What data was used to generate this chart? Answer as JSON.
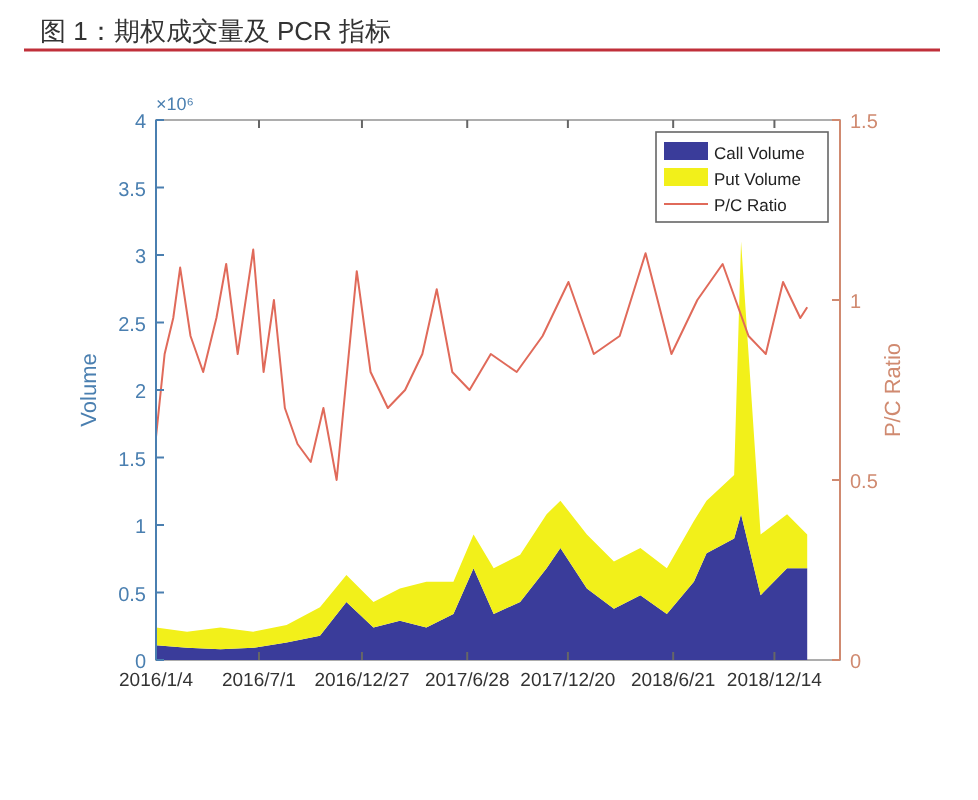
{
  "chart_data": {
    "type": "area",
    "stacked": true,
    "title": "图 1：期权成交量及 PCR 指标",
    "ylabel": "Volume",
    "y2label": "P/C Ratio",
    "annotations": [
      "×10⁶"
    ],
    "legend": "top right",
    "x": [
      "2016-01-04",
      "2016-02-27",
      "2016-04-25",
      "2016-06-21",
      "2016-08-18",
      "2016-10-15",
      "2016-11-30",
      "2017-01-16",
      "2017-03-03",
      "2017-04-18",
      "2017-06-04",
      "2017-07-09",
      "2017-08-13",
      "2017-09-28",
      "2017-11-13",
      "2017-12-07",
      "2018-01-22",
      "2018-03-10",
      "2018-04-25",
      "2018-06-10",
      "2018-07-27",
      "2018-08-18",
      "2018-10-05",
      "2018-10-17",
      "2018-11-20",
      "2019-01-05",
      "2019-02-09"
    ],
    "xlim": [
      "2016-01-04",
      "2019-04-07"
    ],
    "xticks": [
      {
        "value": "2016-01-04",
        "label": "2016/1/4"
      },
      {
        "value": "2016-07-01",
        "label": "2016/7/1"
      },
      {
        "value": "2016-12-27",
        "label": "2016/12/27"
      },
      {
        "value": "2017-06-28",
        "label": "2017/6/28"
      },
      {
        "value": "2017-12-20",
        "label": "2017/12/20"
      },
      {
        "value": "2018-06-21",
        "label": "2018/6/21"
      },
      {
        "value": "2018-12-14",
        "label": "2018/12/14"
      }
    ],
    "ylim": [
      0,
      4
    ],
    "yticks": [
      0,
      0.5,
      1,
      1.5,
      2,
      2.5,
      3,
      3.5,
      4
    ],
    "y2lim": [
      0,
      1.5
    ],
    "y2ticks": [
      0,
      0.5,
      1,
      1.5
    ],
    "series": [
      {
        "name": "Call Volume",
        "color": "#3a3c9a",
        "values": [
          0.11,
          0.09,
          0.08,
          0.09,
          0.13,
          0.18,
          0.43,
          0.24,
          0.29,
          0.24,
          0.34,
          0.68,
          0.34,
          0.43,
          0.68,
          0.83,
          0.53,
          0.38,
          0.48,
          0.34,
          0.58,
          0.79,
          0.9,
          1.08,
          0.48,
          0.68,
          0.68
        ]
      },
      {
        "name": "Put Volume",
        "color": "#f2f01a",
        "values": [
          0.13,
          0.12,
          0.16,
          0.12,
          0.13,
          0.21,
          0.2,
          0.19,
          0.24,
          0.34,
          0.24,
          0.25,
          0.34,
          0.35,
          0.4,
          0.35,
          0.4,
          0.35,
          0.35,
          0.34,
          0.45,
          0.39,
          0.47,
          2.02,
          0.45,
          0.4,
          0.25
        ]
      },
      {
        "name": "P/C Ratio",
        "type": "line",
        "axis": "y2",
        "color": "#e06a5a",
        "x": [
          "2016-01-04",
          "2016-01-19",
          "2016-02-03",
          "2016-02-15",
          "2016-03-04",
          "2016-03-26",
          "2016-04-18",
          "2016-05-05",
          "2016-05-25",
          "2016-06-21",
          "2016-07-09",
          "2016-07-27",
          "2016-08-15",
          "2016-09-06",
          "2016-09-29",
          "2016-10-21",
          "2016-11-13",
          "2016-12-18",
          "2017-01-11",
          "2017-02-10",
          "2017-03-12",
          "2017-04-11",
          "2017-05-06",
          "2017-06-02",
          "2017-07-02",
          "2017-08-08",
          "2017-09-22",
          "2017-11-06",
          "2017-12-21",
          "2018-02-03",
          "2018-03-20",
          "2018-05-04",
          "2018-06-18",
          "2018-08-02",
          "2018-09-15",
          "2018-10-30",
          "2018-11-29",
          "2018-12-29",
          "2019-01-28",
          "2019-02-09"
        ],
        "values": [
          0.62,
          0.85,
          0.95,
          1.09,
          0.9,
          0.8,
          0.95,
          1.1,
          0.85,
          1.14,
          0.8,
          1.0,
          0.7,
          0.6,
          0.55,
          0.7,
          0.5,
          1.08,
          0.8,
          0.7,
          0.75,
          0.85,
          1.03,
          0.8,
          0.75,
          0.85,
          0.8,
          0.9,
          1.05,
          0.85,
          0.9,
          1.13,
          0.85,
          1.0,
          1.1,
          0.9,
          0.85,
          1.05,
          0.95,
          0.98
        ]
      }
    ]
  }
}
